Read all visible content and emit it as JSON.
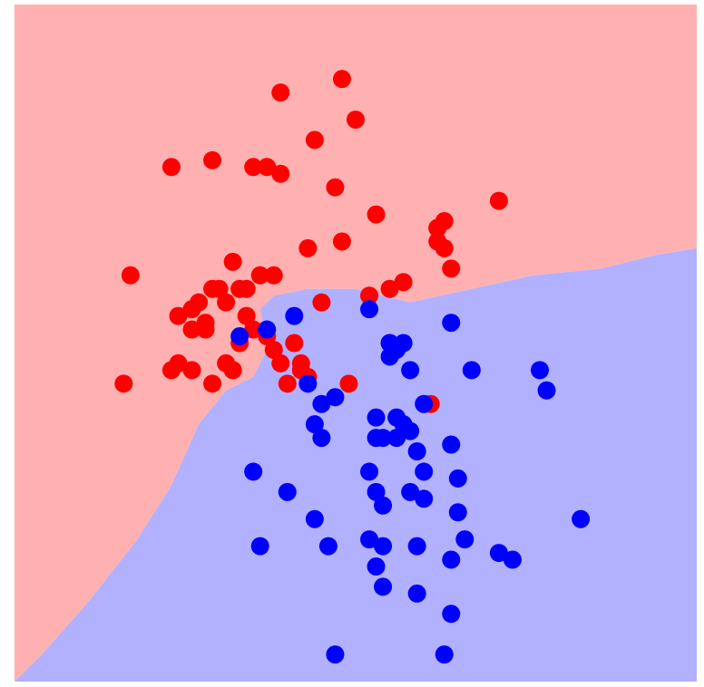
{
  "chart_data": {
    "type": "scatter",
    "title": "",
    "xlabel": "",
    "ylabel": "",
    "xlim": [
      0,
      1
    ],
    "ylim": [
      0,
      1
    ],
    "grid": false,
    "legend": "none",
    "colors": {
      "class_a_region": "#ffb1b1",
      "class_b_region": "#b1b1ff",
      "class_a_points": "#ff0000",
      "class_b_points": "#0000ff",
      "frame": "#ffffff"
    },
    "decision_boundary": [
      [
        0,
        0.0
      ],
      [
        0.04,
        0.04
      ],
      [
        0.11,
        0.12
      ],
      [
        0.18,
        0.21
      ],
      [
        0.23,
        0.29
      ],
      [
        0.27,
        0.38
      ],
      [
        0.31,
        0.43
      ],
      [
        0.35,
        0.45
      ],
      [
        0.37,
        0.49
      ],
      [
        0.36,
        0.55
      ],
      [
        0.38,
        0.57
      ],
      [
        0.43,
        0.58
      ],
      [
        0.5,
        0.58
      ],
      [
        0.58,
        0.56
      ],
      [
        0.67,
        0.58
      ],
      [
        0.76,
        0.6
      ],
      [
        0.86,
        0.61
      ],
      [
        0.94,
        0.63
      ],
      [
        1.0,
        0.64
      ]
    ],
    "series": [
      {
        "class": "a",
        "x": [
          0.39,
          0.48,
          0.5,
          0.44,
          0.23,
          0.29,
          0.35,
          0.37,
          0.39,
          0.47,
          0.53,
          0.63,
          0.3,
          0.32,
          0.38,
          0.36,
          0.45,
          0.62,
          0.62,
          0.63,
          0.64,
          0.62,
          0.17,
          0.24,
          0.28,
          0.31,
          0.33,
          0.35,
          0.34,
          0.43,
          0.52,
          0.55,
          0.48,
          0.57,
          0.27,
          0.29,
          0.26,
          0.33,
          0.37,
          0.34,
          0.32,
          0.26,
          0.28,
          0.24,
          0.26,
          0.23,
          0.31,
          0.39,
          0.41,
          0.38,
          0.42,
          0.43,
          0.49,
          0.16,
          0.29,
          0.4,
          0.42,
          0.55,
          0.61,
          0.71
        ],
        "y": [
          0.87,
          0.89,
          0.83,
          0.8,
          0.76,
          0.77,
          0.76,
          0.76,
          0.75,
          0.73,
          0.69,
          0.68,
          0.58,
          0.62,
          0.6,
          0.6,
          0.56,
          0.67,
          0.65,
          0.64,
          0.61,
          0.67,
          0.6,
          0.54,
          0.52,
          0.56,
          0.58,
          0.52,
          0.54,
          0.64,
          0.57,
          0.58,
          0.65,
          0.59,
          0.56,
          0.58,
          0.52,
          0.5,
          0.51,
          0.58,
          0.46,
          0.55,
          0.53,
          0.47,
          0.46,
          0.46,
          0.47,
          0.47,
          0.5,
          0.49,
          0.46,
          0.45,
          0.44,
          0.44,
          0.44,
          0.44,
          0.47,
          0.5,
          0.41,
          0.71
        ]
      },
      {
        "class": "b",
        "x": [
          0.52,
          0.64,
          0.33,
          0.37,
          0.41,
          0.43,
          0.55,
          0.57,
          0.55,
          0.56,
          0.58,
          0.6,
          0.67,
          0.77,
          0.78,
          0.53,
          0.56,
          0.57,
          0.58,
          0.59,
          0.6,
          0.64,
          0.65,
          0.45,
          0.44,
          0.45,
          0.53,
          0.54,
          0.52,
          0.53,
          0.54,
          0.56,
          0.58,
          0.6,
          0.65,
          0.66,
          0.64,
          0.35,
          0.4,
          0.44,
          0.46,
          0.52,
          0.54,
          0.53,
          0.59,
          0.64,
          0.71,
          0.73,
          0.83,
          0.54,
          0.59,
          0.63,
          0.47,
          0.36,
          0.47
        ],
        "y": [
          0.55,
          0.53,
          0.51,
          0.52,
          0.54,
          0.44,
          0.5,
          0.5,
          0.48,
          0.49,
          0.46,
          0.41,
          0.46,
          0.46,
          0.43,
          0.39,
          0.39,
          0.38,
          0.37,
          0.34,
          0.31,
          0.35,
          0.3,
          0.41,
          0.38,
          0.36,
          0.36,
          0.36,
          0.31,
          0.28,
          0.26,
          0.36,
          0.28,
          0.27,
          0.25,
          0.21,
          0.18,
          0.31,
          0.28,
          0.24,
          0.2,
          0.21,
          0.2,
          0.17,
          0.2,
          0.1,
          0.19,
          0.18,
          0.24,
          0.14,
          0.13,
          0.04,
          0.04,
          0.2,
          0.42
        ]
      }
    ]
  }
}
